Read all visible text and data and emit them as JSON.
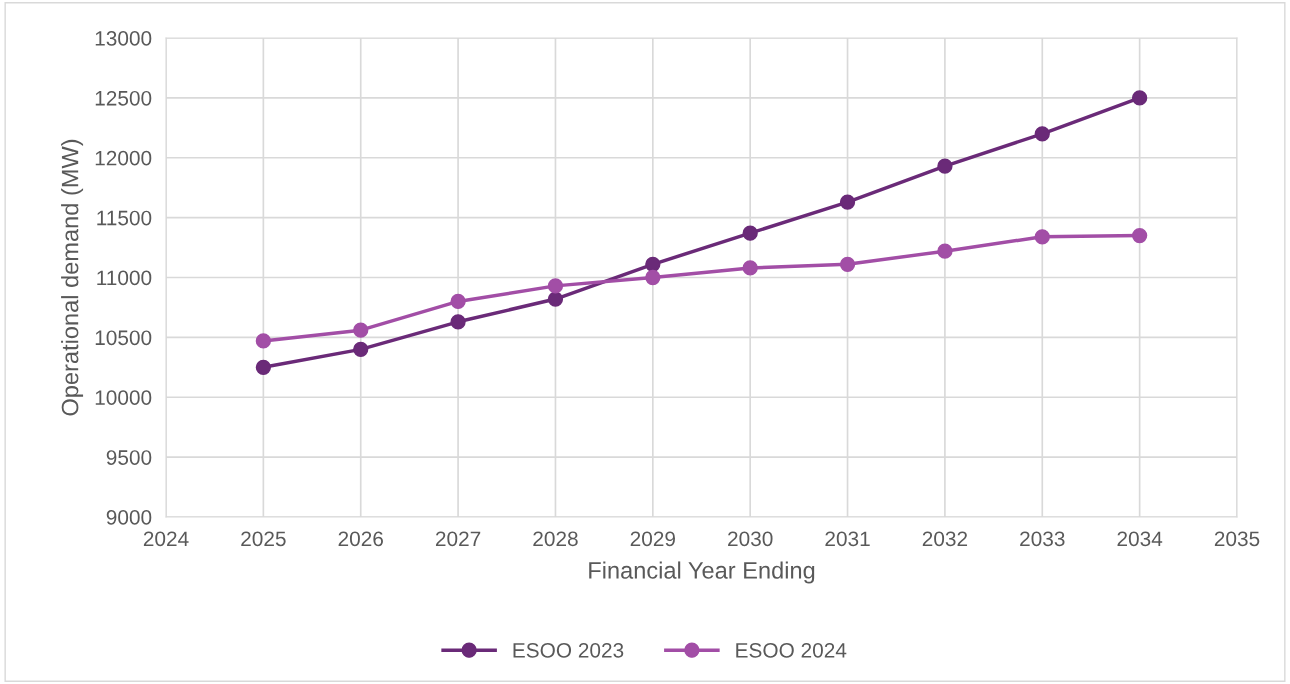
{
  "chart_data": {
    "type": "line",
    "xlabel": "Financial Year Ending",
    "ylabel": "Operational demand (MW)",
    "x": [
      2025,
      2026,
      2027,
      2028,
      2029,
      2030,
      2031,
      2032,
      2033,
      2034
    ],
    "series": [
      {
        "name": "ESOO 2023",
        "color": "#6a2a78",
        "values": [
          10250,
          10400,
          10630,
          10820,
          11110,
          11370,
          11630,
          11930,
          12200,
          12500
        ]
      },
      {
        "name": "ESOO 2024",
        "color": "#a24ea6",
        "values": [
          10470,
          10560,
          10800,
          10930,
          11000,
          11080,
          11110,
          11220,
          11340,
          11350
        ]
      }
    ],
    "xlim": [
      2024,
      2035
    ],
    "xticks": [
      2024,
      2025,
      2026,
      2027,
      2028,
      2029,
      2030,
      2031,
      2032,
      2033,
      2034,
      2035
    ],
    "ylim": [
      9000,
      13000
    ],
    "yticks": [
      9000,
      9500,
      10000,
      10500,
      11000,
      11500,
      12000,
      12500,
      13000
    ],
    "grid": true,
    "legend": "bottom",
    "marker": "circle",
    "line_style": "solid"
  }
}
